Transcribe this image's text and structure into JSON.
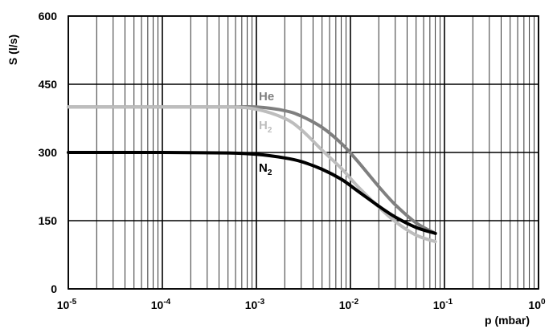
{
  "chart_data": {
    "type": "line",
    "ylabel": "S (l/s)",
    "xlabel": "p (mbar)",
    "x_scale": "log",
    "xlim": [
      1e-05,
      1
    ],
    "ylim": [
      0,
      600
    ],
    "grid": true,
    "y_ticks": [
      "0",
      "150",
      "300",
      "450",
      "600"
    ],
    "x_ticks": [
      {
        "base": "10",
        "exp": "-5",
        "value": 1e-05
      },
      {
        "base": "10",
        "exp": "-4",
        "value": 0.0001
      },
      {
        "base": "10",
        "exp": "-3",
        "value": 0.001
      },
      {
        "base": "10",
        "exp": "-2",
        "value": 0.01
      },
      {
        "base": "10",
        "exp": "-1",
        "value": 0.1
      },
      {
        "base": "10",
        "exp": "0",
        "value": 1
      }
    ],
    "series": [
      {
        "name": "He",
        "label_text": "He",
        "label_sub": "",
        "color": "#7f7f7f",
        "x": [
          1e-05,
          0.0001,
          0.0005,
          0.001,
          0.002,
          0.003,
          0.005,
          0.008,
          0.012,
          0.02,
          0.03,
          0.05,
          0.08
        ],
        "y": [
          400,
          400,
          400,
          400,
          392,
          380,
          355,
          320,
          280,
          225,
          185,
          145,
          122
        ]
      },
      {
        "name": "H2",
        "label_text": "H",
        "label_sub": "2",
        "color": "#bdbdbd",
        "x": [
          1e-05,
          0.0001,
          0.0005,
          0.001,
          0.002,
          0.003,
          0.005,
          0.008,
          0.012,
          0.02,
          0.03,
          0.05,
          0.08
        ],
        "y": [
          400,
          400,
          400,
          395,
          375,
          350,
          305,
          265,
          225,
          180,
          148,
          118,
          104
        ]
      },
      {
        "name": "N2",
        "label_text": "N",
        "label_sub": "2",
        "color": "#000000",
        "x": [
          1e-05,
          0.0001,
          0.0005,
          0.001,
          0.002,
          0.003,
          0.005,
          0.008,
          0.012,
          0.02,
          0.03,
          0.05,
          0.08
        ],
        "y": [
          300,
          300,
          299,
          296,
          288,
          280,
          263,
          241,
          215,
          182,
          158,
          135,
          122
        ]
      }
    ]
  }
}
